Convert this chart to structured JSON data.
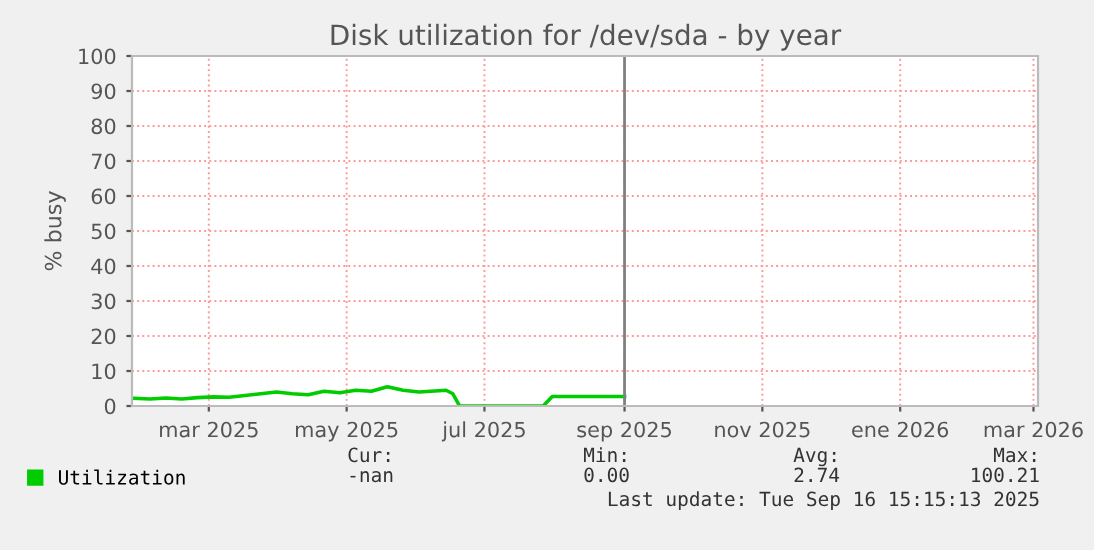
{
  "chart_data": {
    "type": "line",
    "title": "Disk utilization for /dev/sda - by year",
    "ylabel": "% busy",
    "x": [
      "2025-01-27",
      "2025-02-03",
      "2025-02-10",
      "2025-02-17",
      "2025-02-24",
      "2025-03-03",
      "2025-03-10",
      "2025-03-17",
      "2025-03-24",
      "2025-03-31",
      "2025-04-07",
      "2025-04-14",
      "2025-04-21",
      "2025-04-28",
      "2025-05-05",
      "2025-05-12",
      "2025-05-19",
      "2025-05-26",
      "2025-06-02",
      "2025-06-09",
      "2025-06-14",
      "2025-06-17",
      "2025-06-20",
      "2025-07-01",
      "2025-07-15",
      "2025-07-27",
      "2025-07-31",
      "2025-08-10",
      "2025-08-20",
      "2025-09-01"
    ],
    "series": [
      {
        "name": "Utilization",
        "color": "#00cc00",
        "values": [
          2.2,
          2.0,
          2.3,
          2.0,
          2.4,
          2.6,
          2.5,
          3.0,
          3.5,
          4.0,
          3.5,
          3.2,
          4.2,
          3.8,
          4.5,
          4.2,
          5.5,
          4.5,
          4.0,
          4.3,
          4.5,
          3.5,
          0,
          0,
          0,
          0,
          2.7,
          2.7,
          2.7,
          2.7
        ]
      }
    ],
    "xlim": [
      "2025-01-26",
      "2026-03-03"
    ],
    "xticks": [
      {
        "value": "2025-03-01",
        "label": "mar 2025"
      },
      {
        "value": "2025-05-01",
        "label": "may 2025"
      },
      {
        "value": "2025-07-01",
        "label": "jul 2025"
      },
      {
        "value": "2025-09-01",
        "label": "sep 2025"
      },
      {
        "value": "2025-11-01",
        "label": "nov 2025"
      },
      {
        "value": "2026-01-01",
        "label": "ene 2026"
      },
      {
        "value": "2026-03-01",
        "label": "mar 2026"
      }
    ],
    "ylim": [
      0,
      100
    ],
    "yticks": [
      0,
      10,
      20,
      30,
      40,
      50,
      60,
      70,
      80,
      90,
      100
    ],
    "grid": true,
    "legend": "bottom",
    "line_style": "solid",
    "marker": "none",
    "ref_lines": [
      {
        "axis": "x",
        "value": "2025-09-01",
        "label": null,
        "color": "#808080"
      }
    ],
    "annotations": [
      "Cur:",
      "Min:",
      "Avg:",
      "Max:",
      "-nan",
      "0.00",
      "2.74",
      "100.21",
      "Last update: Tue Sep 16 15:15:13 2025"
    ]
  }
}
